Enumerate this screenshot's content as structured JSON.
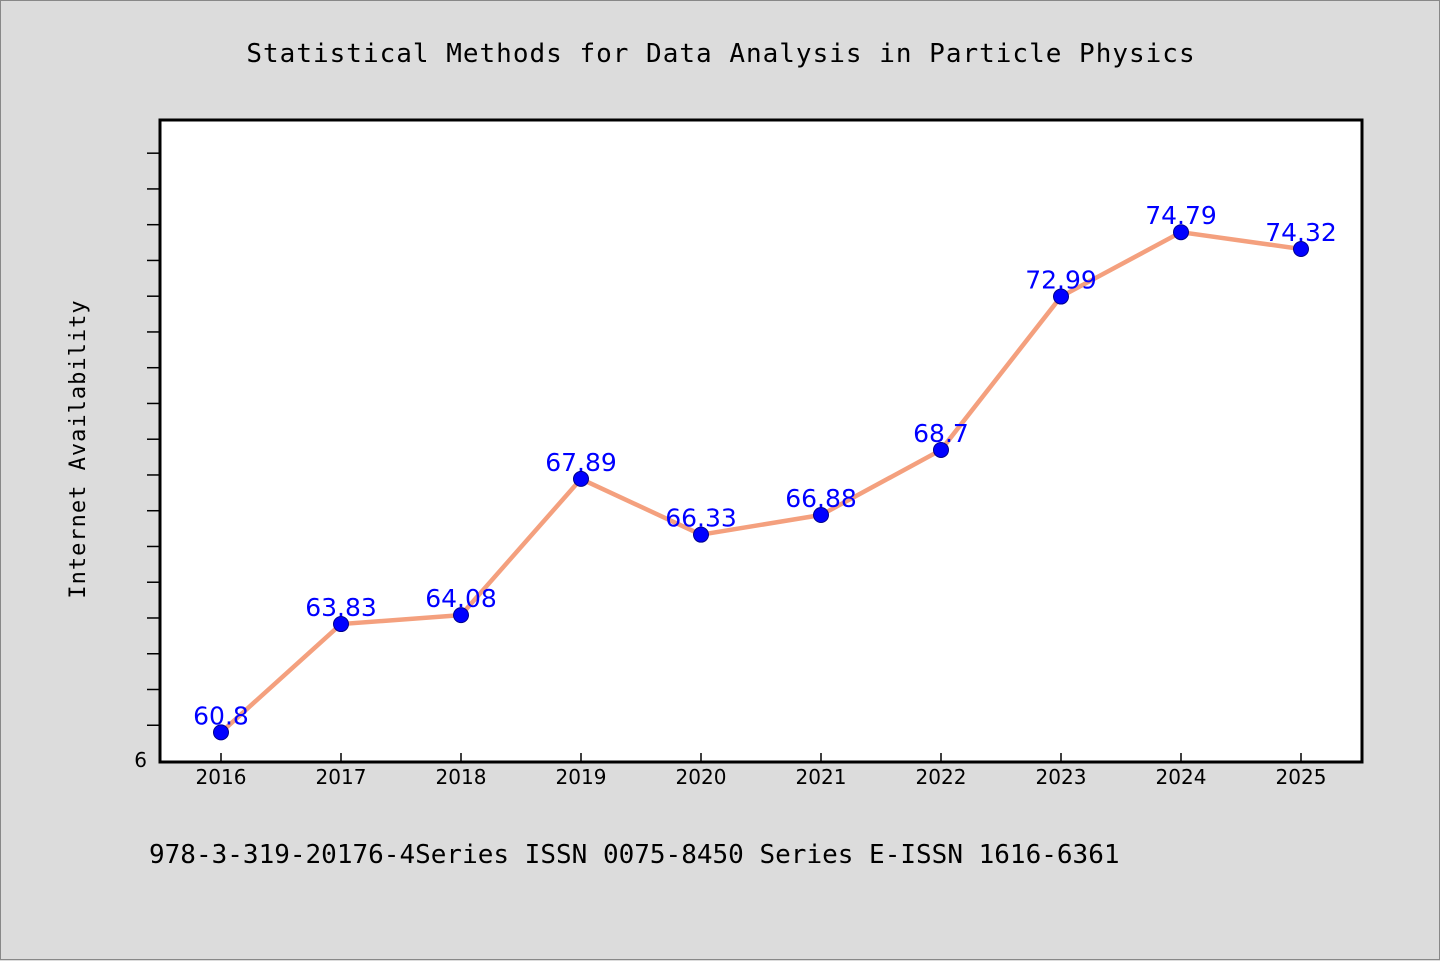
{
  "chart_data": {
    "type": "line",
    "title": "Statistical Methods for Data Analysis in Particle Physics",
    "ylabel": "Internet Availability",
    "xlabel": "",
    "categories": [
      "2016",
      "2017",
      "2018",
      "2019",
      "2020",
      "2021",
      "2022",
      "2023",
      "2024",
      "2025"
    ],
    "series": [
      {
        "values": [
          60.8,
          63.83,
          64.08,
          67.89,
          66.33,
          66.88,
          68.7,
          72.99,
          74.79,
          74.32
        ],
        "data_labels": [
          "60.8",
          "63.83",
          "64.08",
          "67.89",
          "66.33",
          "66.88",
          "68.7",
          "72.99",
          "74.79",
          "74.32"
        ]
      }
    ],
    "ylim": [
      60,
      77.9
    ],
    "y_tick_labels": [
      "6"
    ],
    "y_minor_step": 1,
    "grid": false,
    "line_color": "#f4a07e",
    "marker_color": "#0000ff",
    "label_color": "#0000ff",
    "plot_background": "#ffffff",
    "page_background": "#dcdcdc"
  },
  "footer": {
    "text": "978-3-319-20176-4Series ISSN 0075-8450 Series E-ISSN 1616-6361"
  }
}
